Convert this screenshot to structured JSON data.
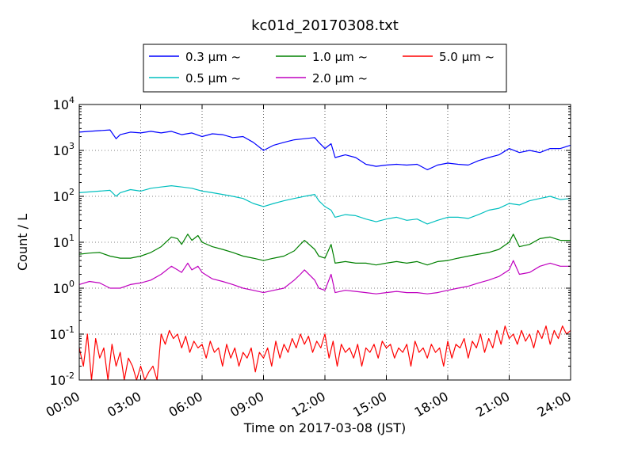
{
  "chart_data": {
    "type": "line",
    "title": "kc01d_20170308.txt",
    "xlabel": "Time on 2017-03-08 (JST)",
    "ylabel": "Count / L",
    "x_unit": "hours",
    "xlim": [
      0,
      24
    ],
    "ylim": [
      0.01,
      10000
    ],
    "y_scale": "log",
    "grid": true,
    "legend_position": "top-center",
    "x_ticks": [
      {
        "value": 0,
        "label": "00:00"
      },
      {
        "value": 3,
        "label": "03:00"
      },
      {
        "value": 6,
        "label": "06:00"
      },
      {
        "value": 9,
        "label": "09:00"
      },
      {
        "value": 12,
        "label": "12:00"
      },
      {
        "value": 15,
        "label": "15:00"
      },
      {
        "value": 18,
        "label": "18:00"
      },
      {
        "value": 21,
        "label": "21:00"
      },
      {
        "value": 24,
        "label": "24:00"
      }
    ],
    "y_ticks": [
      {
        "value": 0.01,
        "base": "10",
        "exp": "-2"
      },
      {
        "value": 0.1,
        "base": "10",
        "exp": "-1"
      },
      {
        "value": 1,
        "base": "10",
        "exp": "0"
      },
      {
        "value": 10,
        "base": "10",
        "exp": "1"
      },
      {
        "value": 100,
        "base": "10",
        "exp": "2"
      },
      {
        "value": 1000,
        "base": "10",
        "exp": "3"
      },
      {
        "value": 10000,
        "base": "10",
        "exp": "4"
      }
    ],
    "series": [
      {
        "name": "0.3 μm ~",
        "color": "#0000ff",
        "x": [
          0,
          0.5,
          1,
          1.5,
          1.8,
          2,
          2.5,
          3,
          3.5,
          4,
          4.5,
          5,
          5.5,
          6,
          6.5,
          7,
          7.5,
          8,
          8.5,
          9,
          9.5,
          10,
          10.5,
          11,
          11.5,
          11.7,
          12,
          12.3,
          12.5,
          13,
          13.5,
          14,
          14.5,
          15,
          15.5,
          16,
          16.5,
          17,
          17.5,
          18,
          18.5,
          19,
          19.5,
          20,
          20.5,
          21,
          21.5,
          22,
          22.5,
          23,
          23.5,
          24
        ],
        "values": [
          2500,
          2600,
          2700,
          2800,
          1800,
          2200,
          2500,
          2400,
          2600,
          2400,
          2600,
          2200,
          2400,
          2000,
          2300,
          2200,
          1900,
          2000,
          1500,
          1000,
          1300,
          1500,
          1700,
          1800,
          1900,
          1500,
          1100,
          1400,
          700,
          800,
          700,
          500,
          450,
          480,
          500,
          480,
          500,
          380,
          480,
          530,
          500,
          480,
          600,
          700,
          800,
          1100,
          900,
          1000,
          900,
          1100,
          1100,
          1300
        ]
      },
      {
        "name": "0.5 μm ~",
        "color": "#00bfbf",
        "x": [
          0,
          0.5,
          1,
          1.5,
          1.8,
          2,
          2.5,
          3,
          3.5,
          4,
          4.5,
          5,
          5.5,
          6,
          6.5,
          7,
          7.5,
          8,
          8.5,
          9,
          9.5,
          10,
          10.5,
          11,
          11.5,
          11.7,
          12,
          12.3,
          12.5,
          13,
          13.5,
          14,
          14.5,
          15,
          15.5,
          16,
          16.5,
          17,
          17.5,
          18,
          18.5,
          19,
          19.5,
          20,
          20.5,
          21,
          21.5,
          22,
          22.5,
          23,
          23.5,
          24
        ],
        "values": [
          120,
          125,
          130,
          135,
          100,
          120,
          140,
          130,
          150,
          160,
          170,
          160,
          150,
          130,
          120,
          110,
          100,
          90,
          70,
          60,
          70,
          80,
          90,
          100,
          110,
          80,
          60,
          50,
          35,
          40,
          38,
          32,
          28,
          32,
          35,
          30,
          32,
          25,
          30,
          35,
          35,
          33,
          40,
          50,
          55,
          70,
          65,
          80,
          90,
          100,
          85,
          90
        ]
      },
      {
        "name": "1.0 μm ~",
        "color": "#008000",
        "x": [
          0,
          0.5,
          1,
          1.5,
          2,
          2.5,
          3,
          3.5,
          4,
          4.5,
          4.8,
          5,
          5.3,
          5.5,
          5.8,
          6,
          6.5,
          7,
          7.5,
          8,
          8.5,
          9,
          9.5,
          10,
          10.5,
          10.8,
          11,
          11.5,
          11.7,
          12,
          12.3,
          12.5,
          13,
          13.5,
          14,
          14.5,
          15,
          15.5,
          16,
          16.5,
          17,
          17.5,
          18,
          18.5,
          19,
          19.5,
          20,
          20.5,
          21,
          21.2,
          21.5,
          22,
          22.5,
          23,
          23.5,
          24
        ],
        "values": [
          5.5,
          5.8,
          6,
          5,
          4.5,
          4.5,
          5,
          6,
          8,
          13,
          12,
          9,
          15,
          11,
          14,
          10,
          8,
          7,
          6,
          5,
          4.5,
          4,
          4.5,
          5,
          6.5,
          9,
          11,
          7,
          5,
          4.5,
          9,
          3.5,
          3.8,
          3.5,
          3.5,
          3.2,
          3.5,
          3.8,
          3.5,
          3.8,
          3.2,
          3.8,
          4,
          4.5,
          5,
          5.5,
          6,
          7,
          10,
          15,
          8,
          9,
          12,
          13,
          11,
          11
        ]
      },
      {
        "name": "2.0 μm ~",
        "color": "#bf00bf",
        "x": [
          0,
          0.5,
          1,
          1.5,
          2,
          2.5,
          3,
          3.5,
          4,
          4.5,
          4.8,
          5,
          5.3,
          5.5,
          5.8,
          6,
          6.5,
          7,
          7.5,
          8,
          8.5,
          9,
          9.5,
          10,
          10.5,
          10.8,
          11,
          11.5,
          11.7,
          12,
          12.3,
          12.5,
          13,
          13.5,
          14,
          14.5,
          15,
          15.5,
          16,
          16.5,
          17,
          17.5,
          18,
          18.5,
          19,
          19.5,
          20,
          20.5,
          21,
          21.2,
          21.5,
          22,
          22.5,
          23,
          23.5,
          24
        ],
        "values": [
          1.2,
          1.4,
          1.3,
          1,
          1,
          1.2,
          1.3,
          1.5,
          2,
          3,
          2.5,
          2.2,
          3.5,
          2.5,
          3,
          2.2,
          1.6,
          1.4,
          1.2,
          1,
          0.9,
          0.8,
          0.9,
          1,
          1.5,
          2,
          2.5,
          1.5,
          1,
          0.9,
          2,
          0.8,
          0.9,
          0.85,
          0.8,
          0.75,
          0.8,
          0.85,
          0.8,
          0.8,
          0.75,
          0.8,
          0.9,
          1,
          1.1,
          1.3,
          1.5,
          1.8,
          2.5,
          4,
          2,
          2.2,
          3,
          3.5,
          3,
          3
        ]
      },
      {
        "name": "5.0 μm ~",
        "color": "#ff0000",
        "x": [
          0,
          0.2,
          0.4,
          0.6,
          0.8,
          1,
          1.2,
          1.4,
          1.6,
          1.8,
          2,
          2.2,
          2.4,
          2.6,
          2.8,
          3,
          3.2,
          3.4,
          3.6,
          3.8,
          4,
          4.2,
          4.4,
          4.6,
          4.8,
          5,
          5.2,
          5.4,
          5.6,
          5.8,
          6,
          6.2,
          6.4,
          6.6,
          6.8,
          7,
          7.2,
          7.4,
          7.6,
          7.8,
          8,
          8.2,
          8.4,
          8.6,
          8.8,
          9,
          9.2,
          9.4,
          9.6,
          9.8,
          10,
          10.2,
          10.4,
          10.6,
          10.8,
          11,
          11.2,
          11.4,
          11.6,
          11.8,
          12,
          12.2,
          12.4,
          12.6,
          12.8,
          13,
          13.2,
          13.4,
          13.6,
          13.8,
          14,
          14.2,
          14.4,
          14.6,
          14.8,
          15,
          15.2,
          15.4,
          15.6,
          15.8,
          16,
          16.2,
          16.4,
          16.6,
          16.8,
          17,
          17.2,
          17.4,
          17.6,
          17.8,
          18,
          18.2,
          18.4,
          18.6,
          18.8,
          19,
          19.2,
          19.4,
          19.6,
          19.8,
          20,
          20.2,
          20.4,
          20.6,
          20.8,
          21,
          21.2,
          21.4,
          21.6,
          21.8,
          22,
          22.2,
          22.4,
          22.6,
          22.8,
          23,
          23.2,
          23.4,
          23.6,
          23.8,
          24
        ],
        "values": [
          0.05,
          0.02,
          0.1,
          0.01,
          0.08,
          0.03,
          0.05,
          0.01,
          0.06,
          0.02,
          0.04,
          0.01,
          0.03,
          0.02,
          0.01,
          0.02,
          0.01,
          0.015,
          0.02,
          0.01,
          0.1,
          0.06,
          0.12,
          0.08,
          0.1,
          0.05,
          0.09,
          0.04,
          0.07,
          0.05,
          0.06,
          0.03,
          0.07,
          0.04,
          0.05,
          0.02,
          0.06,
          0.03,
          0.05,
          0.02,
          0.04,
          0.03,
          0.05,
          0.015,
          0.04,
          0.03,
          0.05,
          0.02,
          0.07,
          0.03,
          0.06,
          0.04,
          0.08,
          0.05,
          0.1,
          0.06,
          0.09,
          0.04,
          0.07,
          0.05,
          0.1,
          0.03,
          0.07,
          0.02,
          0.06,
          0.04,
          0.05,
          0.03,
          0.06,
          0.02,
          0.05,
          0.04,
          0.06,
          0.03,
          0.07,
          0.05,
          0.06,
          0.03,
          0.05,
          0.04,
          0.06,
          0.02,
          0.07,
          0.04,
          0.05,
          0.03,
          0.06,
          0.04,
          0.05,
          0.02,
          0.07,
          0.03,
          0.06,
          0.05,
          0.08,
          0.03,
          0.07,
          0.05,
          0.1,
          0.04,
          0.08,
          0.05,
          0.12,
          0.06,
          0.15,
          0.08,
          0.1,
          0.06,
          0.12,
          0.07,
          0.1,
          0.05,
          0.12,
          0.08,
          0.15,
          0.06,
          0.12,
          0.08,
          0.15,
          0.1,
          0.12
        ]
      }
    ]
  }
}
